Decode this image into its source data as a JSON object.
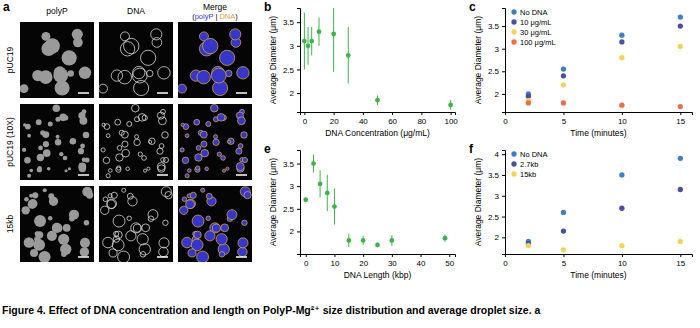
{
  "figure": {
    "panel_a": {
      "letter": "a",
      "columns": [
        "polyP",
        "DNA",
        "Merge"
      ],
      "merge_parts": [
        "(",
        "polyP",
        " | ",
        "DNA",
        ")"
      ],
      "merge_colors": [
        "#000000",
        "#3b3bd6",
        "#000000",
        "#e0a030",
        "#000000"
      ],
      "rows": [
        "pUC19",
        "pUC19 (10X)",
        "15kb"
      ]
    },
    "caption": "Figure 4. Effect of DNA concentration and length on PolyP-Mg²⁺ size distribution and average droplet size. a"
  },
  "chart_data": [
    {
      "type": "scatter",
      "panel_label": "b",
      "x_label": "DNA Concentration (μg/mL)",
      "y_label": "Average Diameter (μm)",
      "x": [
        0,
        2.5,
        5,
        10,
        20,
        30,
        50,
        100
      ],
      "values": [
        3.1,
        3.0,
        3.1,
        3.3,
        3.25,
        2.8,
        1.85,
        1.75
      ],
      "errors": [
        0.6,
        0.4,
        0.3,
        0.3,
        0.8,
        0.6,
        0.1,
        0.1
      ],
      "color": "#3cb44b",
      "marker": "circle",
      "grid": false,
      "xlim": [
        -3,
        103
      ],
      "xticks": [
        0,
        20,
        40,
        60,
        80,
        100
      ],
      "ylim": [
        1.6,
        3.8
      ],
      "yticks": [
        2,
        2.5,
        3,
        3.5
      ]
    },
    {
      "type": "scatter",
      "panel_label": "c",
      "x_label": "Time (minutes)",
      "y_label": "Average Diameter (μm)",
      "x": [
        2,
        5,
        10,
        15
      ],
      "series": [
        {
          "name": "No DNA",
          "color": "#3d7fc1",
          "values": [
            2.0,
            2.55,
            3.3,
            3.7
          ]
        },
        {
          "name": "10 μg/mL",
          "color": "#4b4fa0",
          "values": [
            1.95,
            2.4,
            3.15,
            3.5
          ]
        },
        {
          "name": "30 μg/mL",
          "color": "#f2d45c",
          "values": [
            1.85,
            2.2,
            2.8,
            3.05
          ]
        },
        {
          "name": "100 μg/mL",
          "color": "#ef6c4a",
          "values": [
            1.8,
            1.8,
            1.75,
            1.72
          ]
        }
      ],
      "marker": "circle",
      "legend": "upper left",
      "grid": false,
      "xlim": [
        0,
        16
      ],
      "xticks": [
        0,
        5,
        10,
        15
      ],
      "ylim": [
        1.6,
        3.9
      ],
      "yticks": [
        2,
        2.5,
        3,
        3.5
      ]
    },
    {
      "type": "scatter",
      "panel_label": "e",
      "x_label": "DNA Length (kbp)",
      "y_label": "Average Diameter (μm)",
      "x": [
        0,
        2.7,
        5,
        7.5,
        10,
        15,
        20,
        25,
        30,
        48.5
      ],
      "values": [
        2.7,
        3.5,
        3.05,
        2.85,
        2.55,
        1.8,
        1.8,
        1.7,
        1.8,
        1.85
      ],
      "errors": [
        0,
        0.2,
        0.3,
        0.4,
        0.4,
        0.15,
        0.1,
        0.05,
        0.12,
        0.08
      ],
      "color": "#3cb44b",
      "marker": "circle",
      "grid": false,
      "xlim": [
        -2,
        52
      ],
      "xticks": [
        0,
        10,
        20,
        30,
        40,
        50
      ],
      "ylim": [
        1.5,
        3.8
      ],
      "yticks": [
        2,
        2.5,
        3,
        3.5
      ]
    },
    {
      "type": "scatter",
      "panel_label": "f",
      "x_label": "Time (minutes)",
      "y_label": "Average Diameter (μm)",
      "x": [
        2,
        5,
        10,
        15
      ],
      "series": [
        {
          "name": "No DNA",
          "color": "#3d7fc1",
          "values": [
            1.9,
            2.6,
            3.5,
            3.9
          ]
        },
        {
          "name": "2.7kb",
          "color": "#4b4fa0",
          "values": [
            1.85,
            2.15,
            2.7,
            3.15
          ]
        },
        {
          "name": "15kb",
          "color": "#f2d45c",
          "values": [
            1.8,
            1.7,
            1.8,
            1.9
          ]
        }
      ],
      "marker": "circle",
      "legend": "upper left",
      "grid": false,
      "xlim": [
        0,
        16
      ],
      "xticks": [
        0,
        5,
        10,
        15
      ],
      "ylim": [
        1.6,
        4.1
      ],
      "yticks": [
        2,
        2.5,
        3,
        3.5,
        4
      ]
    }
  ]
}
